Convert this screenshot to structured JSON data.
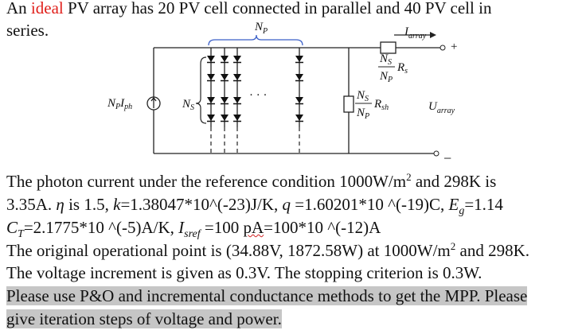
{
  "problem": {
    "intro": [
      "An ",
      "ideal",
      " PV array has 20 PV cell connected in parallel and 40 PV cell in",
      "series."
    ],
    "circuit": {
      "np_label": [
        "N",
        "P"
      ],
      "i_array": [
        "I",
        "array"
      ],
      "plus": "+",
      "rs": {
        "num": [
          "N",
          "S"
        ],
        "den": [
          "N",
          "P"
        ],
        "r": [
          "R",
          "s"
        ]
      },
      "iph": [
        "N",
        "P",
        "I",
        "ph"
      ],
      "ns": [
        "N",
        "S"
      ],
      "dots": "· · ·",
      "rsh": {
        "num": [
          "N",
          "S"
        ],
        "den": [
          "N",
          "P"
        ],
        "r": [
          "R",
          "sh"
        ]
      },
      "u_array": [
        "U",
        "array"
      ],
      "minus": "−"
    },
    "conditions": [
      [
        "The photon current under the reference condition 1000W/m",
        "2",
        " and 298K is"
      ],
      [
        "3.35A. ",
        "η",
        " is 1.5, ",
        "k",
        "=1.38047*10^(-23)J/K, ",
        "q",
        " =1.60201*10 ^(-19)C, ",
        "E",
        "g",
        "=1.14"
      ],
      [
        "C",
        "T",
        "=2.1775*10 ^(-5)A/K, ",
        "I",
        "sref",
        " =100 ",
        "pA",
        "=100*10 ^(-12)A"
      ],
      [
        "The original operational point is (34.88V, 1872.58W) at 1000W/m",
        "2",
        " and 298K."
      ],
      [
        "The voltage increment is given as 0.3V. The stopping criterion is 0.3W."
      ]
    ],
    "request": [
      "Please use P&O and incremental conductance methods to get the MPP. Please",
      "give iteration steps of voltage and power."
    ]
  }
}
